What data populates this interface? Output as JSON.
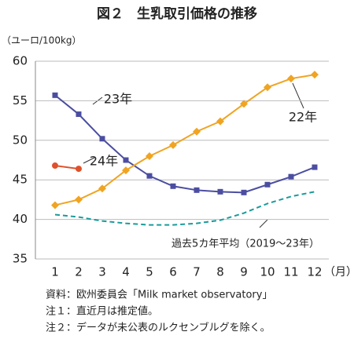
{
  "chart_data": {
    "type": "line",
    "title": "図２　生乳取引価格の推移",
    "y_label": "（ユーロ/100kg）",
    "x_unit": "（月）",
    "categories": [
      "1",
      "2",
      "3",
      "4",
      "5",
      "6",
      "7",
      "8",
      "9",
      "10",
      "11",
      "12"
    ],
    "ylim": [
      35,
      60
    ],
    "yticks": [
      35,
      40,
      45,
      50,
      55,
      60
    ],
    "grid": true,
    "series": [
      {
        "name": "23年",
        "color": "#4b4ea0",
        "marker": "square",
        "values": [
          55.7,
          53.3,
          50.2,
          47.5,
          45.5,
          44.2,
          43.7,
          43.5,
          43.4,
          44.4,
          45.4,
          46.6
        ]
      },
      {
        "name": "22年",
        "color": "#f0a422",
        "marker": "diamond",
        "values": [
          41.8,
          42.5,
          43.9,
          46.2,
          48.0,
          49.4,
          51.1,
          52.4,
          54.6,
          56.7,
          57.8,
          58.3
        ]
      },
      {
        "name": "24年",
        "color": "#e0502a",
        "marker": "circle",
        "values": [
          46.8,
          46.4,
          null,
          null,
          null,
          null,
          null,
          null,
          null,
          null,
          null,
          null
        ]
      },
      {
        "name": "過去5カ年平均（2019～23年）",
        "color": "#1a9a9a",
        "marker": "none",
        "dash": true,
        "values": [
          40.6,
          40.3,
          39.8,
          39.5,
          39.3,
          39.3,
          39.5,
          39.9,
          40.8,
          42.0,
          42.9,
          43.5
        ]
      }
    ],
    "notes": [
      "資料：欧州委員会「Milk market observatory」",
      "注１：直近月は推定値。",
      "注２：データが未公表のルクセンブルグを除く。"
    ]
  }
}
